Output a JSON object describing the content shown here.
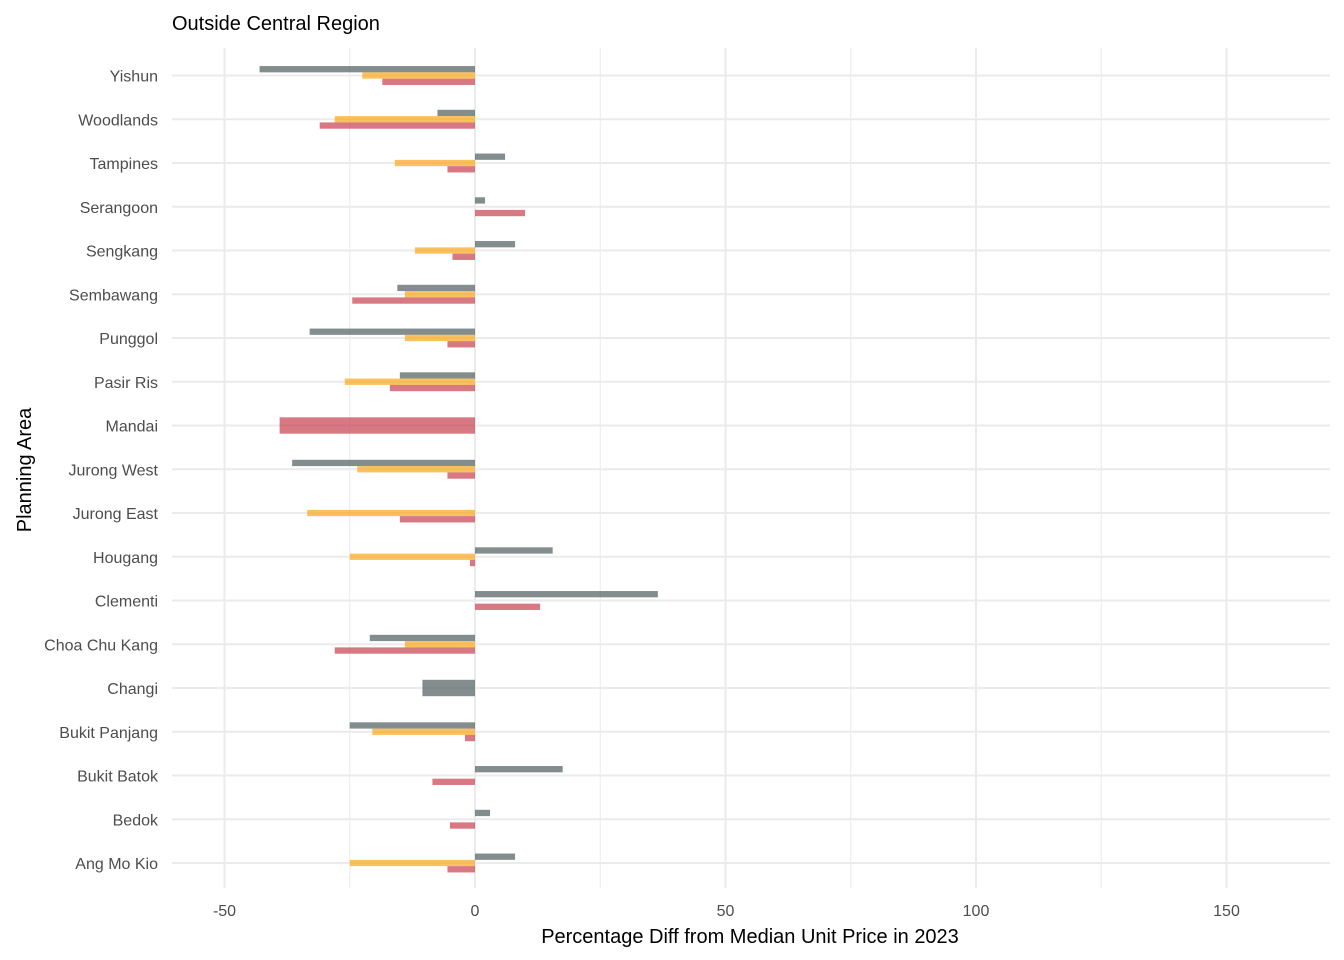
{
  "chart_data": {
    "type": "bar",
    "orientation": "horizontal",
    "title": "Outside Central Region",
    "xlabel": "Percentage Diff from Median Unit Price in 2023",
    "ylabel": "Planning Area",
    "xlim": [
      -60,
      170
    ],
    "xticks": [
      -50,
      0,
      50,
      100,
      150
    ],
    "categories": [
      "Ang Mo Kio",
      "Bedok",
      "Bukit Batok",
      "Bukit Panjang",
      "Changi",
      "Choa Chu Kang",
      "Clementi",
      "Hougang",
      "Jurong East",
      "Jurong West",
      "Mandai",
      "Pasir Ris",
      "Punggol",
      "Sembawang",
      "Sengkang",
      "Serangoon",
      "Tampines",
      "Woodlands",
      "Yishun"
    ],
    "series": [
      {
        "color": "#4f5d5c",
        "values": [
          8,
          3,
          17.5,
          -25,
          -10.5,
          -21,
          36.5,
          15.5,
          null,
          -36.5,
          null,
          -15,
          -33,
          -15.5,
          8,
          2,
          6,
          -7.5,
          -43
        ]
      },
      {
        "color": "#f9a61a",
        "values": [
          -25,
          null,
          null,
          -20.5,
          null,
          -14,
          null,
          -25,
          -33.5,
          -23.5,
          null,
          -26,
          -14,
          -14,
          -12,
          null,
          -16,
          -28,
          -22.5
        ]
      },
      {
        "color": "#c73e4f",
        "values": [
          -5.5,
          -5,
          -8.5,
          -2,
          null,
          -28,
          13,
          -1,
          -15,
          -5.5,
          -39,
          -17,
          -5.5,
          -24.5,
          -4.5,
          10,
          -5.5,
          -31,
          -18.5
        ]
      }
    ],
    "grid": true
  }
}
